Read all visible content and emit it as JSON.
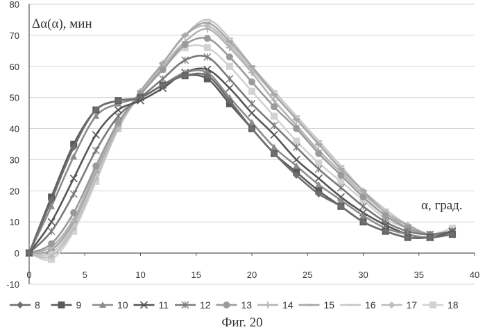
{
  "chart_data": {
    "type": "line",
    "ylabel": "Δα(α), мин",
    "xlabel": "α, град.",
    "caption": "Фиг. 20",
    "xlim": [
      0,
      40
    ],
    "ylim": [
      -10,
      80
    ],
    "x_ticks": [
      "0",
      "5",
      "10",
      "15",
      "20",
      "25",
      "30",
      "35",
      "40"
    ],
    "y_ticks": [
      "-10",
      "0",
      "10",
      "20",
      "30",
      "40",
      "50",
      "60",
      "70",
      "80"
    ],
    "grid": true,
    "legend_position": "bottom",
    "x": [
      0,
      2,
      4,
      6,
      8,
      10,
      12,
      14,
      16,
      18,
      20,
      22,
      24,
      26,
      28,
      30,
      32,
      34,
      36,
      38
    ],
    "series": [
      {
        "name": "8",
        "marker": "diamond",
        "color": "#6e6e6e",
        "values": [
          0,
          17,
          34,
          46,
          49,
          50,
          54,
          57,
          57,
          49,
          40,
          32,
          25,
          19,
          15,
          10,
          7,
          5,
          5,
          6
        ]
      },
      {
        "name": "9",
        "marker": "square",
        "color": "#5a5a5a",
        "values": [
          0,
          18,
          35,
          46,
          49,
          50,
          54,
          57,
          56,
          48,
          40,
          32,
          26,
          20,
          15,
          10,
          7,
          5,
          5,
          6
        ]
      },
      {
        "name": "10",
        "marker": "triangle",
        "color": "#8c8c8c",
        "values": [
          0,
          15,
          31,
          44,
          48,
          50,
          54,
          58,
          58,
          50,
          42,
          34,
          28,
          22,
          17,
          12,
          8,
          6,
          5,
          6
        ]
      },
      {
        "name": "11",
        "marker": "x",
        "color": "#555555",
        "values": [
          0,
          10,
          24,
          38,
          46,
          49,
          53,
          58,
          59,
          53,
          45,
          38,
          30,
          24,
          18,
          13,
          9,
          6,
          5,
          7
        ]
      },
      {
        "name": "12",
        "marker": "star",
        "color": "#7a7a7a",
        "values": [
          0,
          7,
          19,
          33,
          44,
          50,
          56,
          62,
          63,
          56,
          48,
          41,
          34,
          27,
          21,
          15,
          10,
          7,
          6,
          7
        ]
      },
      {
        "name": "13",
        "marker": "circle",
        "color": "#9a9a9a",
        "values": [
          0,
          3,
          13,
          28,
          42,
          51,
          59,
          67,
          69,
          63,
          55,
          47,
          40,
          32,
          25,
          18,
          12,
          8,
          6,
          7
        ]
      },
      {
        "name": "14",
        "marker": "plus",
        "color": "#b4b4b4",
        "values": [
          0,
          2,
          11,
          27,
          41,
          51,
          60,
          68,
          72,
          66,
          58,
          49,
          41,
          33,
          26,
          19,
          13,
          8,
          6,
          7
        ]
      },
      {
        "name": "15",
        "marker": "dash",
        "color": "#a6a6a6",
        "values": [
          0,
          1,
          10,
          26,
          41,
          52,
          61,
          70,
          74,
          68,
          60,
          51,
          43,
          35,
          27,
          20,
          13,
          9,
          6,
          7
        ]
      },
      {
        "name": "16",
        "marker": "dash",
        "color": "#c8c8c8",
        "values": [
          0,
          0,
          9,
          25,
          41,
          52,
          61,
          70,
          75,
          69,
          60,
          52,
          44,
          36,
          28,
          20,
          14,
          9,
          6,
          7
        ]
      },
      {
        "name": "17",
        "marker": "diamond",
        "color": "#bebebe",
        "values": [
          0,
          -1,
          8,
          24,
          40,
          52,
          61,
          70,
          73,
          67,
          59,
          51,
          43,
          35,
          27,
          20,
          13,
          9,
          6,
          7
        ]
      },
      {
        "name": "18",
        "marker": "square",
        "color": "#d2d2d2",
        "values": [
          0,
          -2,
          7,
          23,
          40,
          51,
          59,
          66,
          66,
          60,
          52,
          44,
          36,
          29,
          23,
          17,
          11,
          8,
          6,
          8
        ]
      }
    ]
  }
}
